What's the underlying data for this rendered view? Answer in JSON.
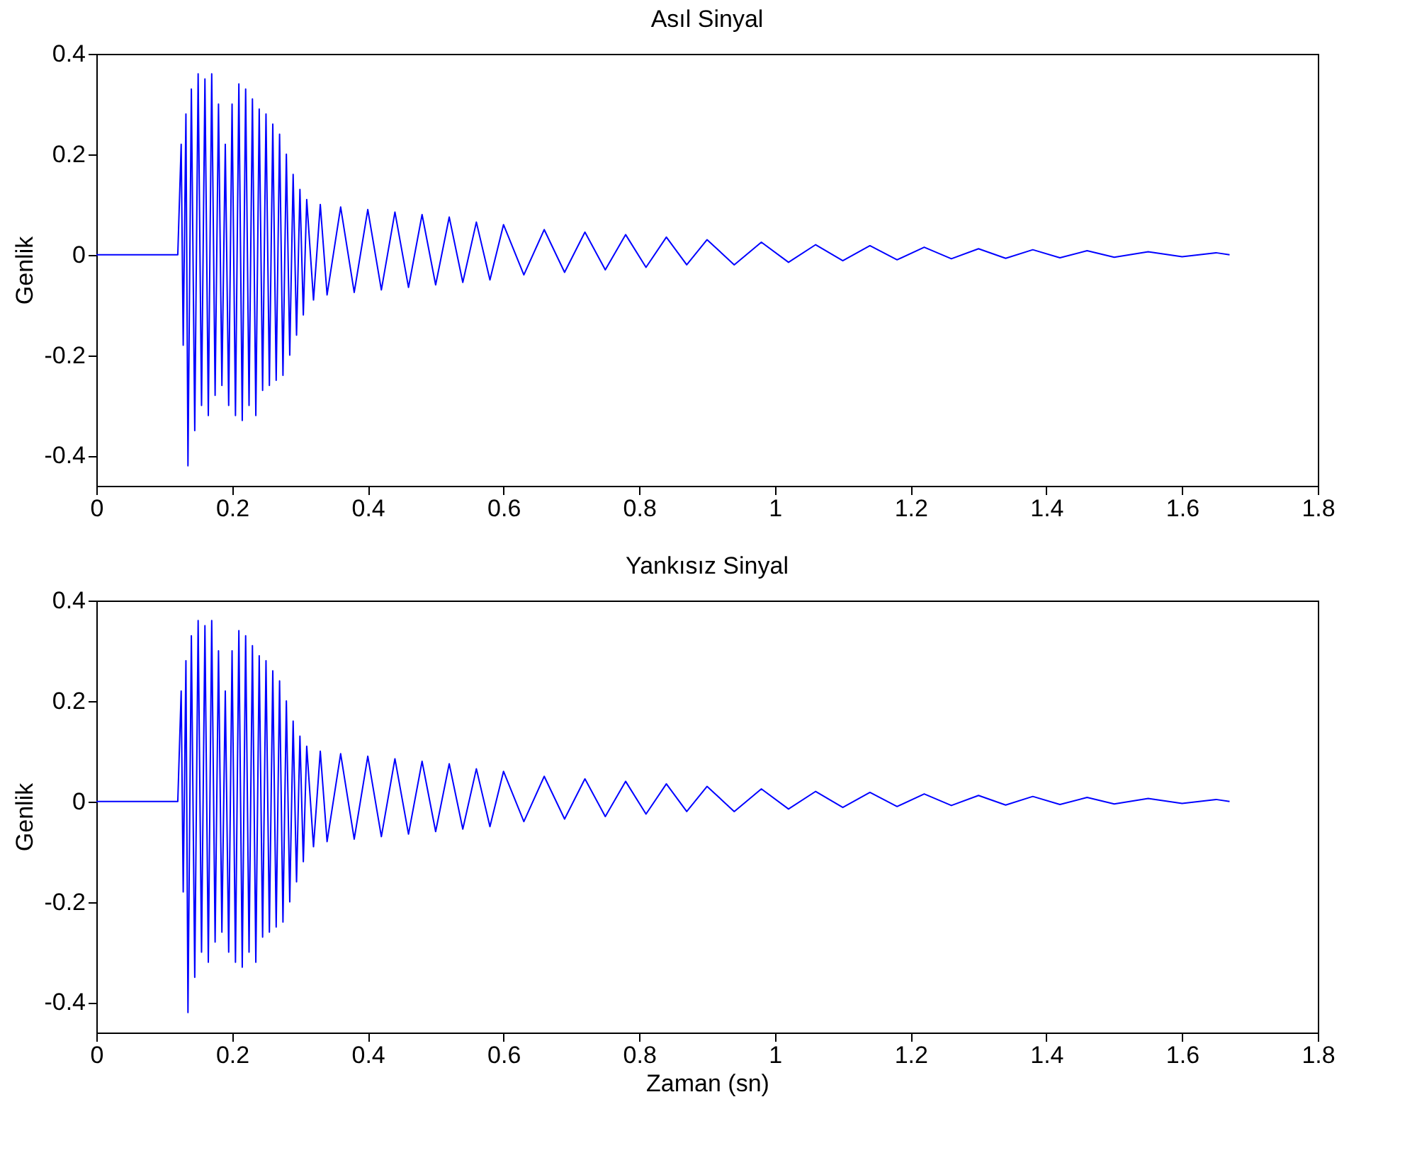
{
  "chart_data": [
    {
      "type": "line",
      "title": "Asıl Sinyal",
      "ylabel": "Genlik",
      "xlim": [
        0,
        1.8
      ],
      "xticks": [
        0,
        0.2,
        0.4,
        0.6,
        0.8,
        1,
        1.2,
        1.4,
        1.6,
        1.8
      ],
      "ylim": [
        -0.46,
        0.4
      ],
      "yticks": [
        -0.4,
        -0.2,
        0,
        0.2,
        0.4
      ],
      "grid": false,
      "line_style": "solid",
      "marker": "none",
      "x": [
        0,
        0.12,
        0.125,
        0.128,
        0.132,
        0.135,
        0.14,
        0.145,
        0.15,
        0.155,
        0.16,
        0.165,
        0.17,
        0.175,
        0.18,
        0.185,
        0.19,
        0.195,
        0.2,
        0.205,
        0.21,
        0.215,
        0.22,
        0.225,
        0.23,
        0.235,
        0.24,
        0.245,
        0.25,
        0.255,
        0.26,
        0.265,
        0.27,
        0.275,
        0.28,
        0.285,
        0.29,
        0.295,
        0.3,
        0.305,
        0.31,
        0.32,
        0.33,
        0.34,
        0.36,
        0.38,
        0.4,
        0.42,
        0.44,
        0.46,
        0.48,
        0.5,
        0.52,
        0.54,
        0.56,
        0.58,
        0.6,
        0.63,
        0.66,
        0.69,
        0.72,
        0.75,
        0.78,
        0.81,
        0.84,
        0.87,
        0.9,
        0.94,
        0.98,
        1.02,
        1.06,
        1.1,
        1.14,
        1.18,
        1.22,
        1.26,
        1.3,
        1.34,
        1.38,
        1.42,
        1.46,
        1.5,
        1.55,
        1.6,
        1.65,
        1.67
      ],
      "series": [
        {
          "color": "#0000ff",
          "values": [
            0,
            0,
            0.22,
            -0.18,
            0.28,
            -0.42,
            0.33,
            -0.35,
            0.36,
            -0.3,
            0.35,
            -0.32,
            0.36,
            -0.28,
            0.3,
            -0.26,
            0.22,
            -0.3,
            0.3,
            -0.32,
            0.34,
            -0.33,
            0.33,
            -0.3,
            0.31,
            -0.32,
            0.29,
            -0.27,
            0.28,
            -0.26,
            0.26,
            -0.25,
            0.24,
            -0.24,
            0.2,
            -0.2,
            0.16,
            -0.16,
            0.13,
            -0.12,
            0.11,
            -0.09,
            0.1,
            -0.08,
            0.095,
            -0.075,
            0.09,
            -0.07,
            0.085,
            -0.065,
            0.08,
            -0.06,
            0.075,
            -0.055,
            0.065,
            -0.05,
            0.06,
            -0.04,
            0.05,
            -0.035,
            0.045,
            -0.03,
            0.04,
            -0.025,
            0.035,
            -0.02,
            0.03,
            -0.02,
            0.025,
            -0.015,
            0.02,
            -0.012,
            0.018,
            -0.01,
            0.015,
            -0.008,
            0.012,
            -0.007,
            0.01,
            -0.006,
            0.008,
            -0.005,
            0.006,
            -0.004,
            0.004,
            0
          ]
        }
      ]
    },
    {
      "type": "line",
      "title": "Yankısız Sinyal",
      "xlabel": "Zaman (sn)",
      "ylabel": "Genlik",
      "xlim": [
        0,
        1.8
      ],
      "xticks": [
        0,
        0.2,
        0.4,
        0.6,
        0.8,
        1,
        1.2,
        1.4,
        1.6,
        1.8
      ],
      "ylim": [
        -0.46,
        0.4
      ],
      "yticks": [
        -0.4,
        -0.2,
        0,
        0.2,
        0.4
      ],
      "grid": false,
      "line_style": "solid",
      "marker": "none",
      "x": [
        0,
        0.12,
        0.125,
        0.128,
        0.132,
        0.135,
        0.14,
        0.145,
        0.15,
        0.155,
        0.16,
        0.165,
        0.17,
        0.175,
        0.18,
        0.185,
        0.19,
        0.195,
        0.2,
        0.205,
        0.21,
        0.215,
        0.22,
        0.225,
        0.23,
        0.235,
        0.24,
        0.245,
        0.25,
        0.255,
        0.26,
        0.265,
        0.27,
        0.275,
        0.28,
        0.285,
        0.29,
        0.295,
        0.3,
        0.305,
        0.31,
        0.32,
        0.33,
        0.34,
        0.36,
        0.38,
        0.4,
        0.42,
        0.44,
        0.46,
        0.48,
        0.5,
        0.52,
        0.54,
        0.56,
        0.58,
        0.6,
        0.63,
        0.66,
        0.69,
        0.72,
        0.75,
        0.78,
        0.81,
        0.84,
        0.87,
        0.9,
        0.94,
        0.98,
        1.02,
        1.06,
        1.1,
        1.14,
        1.18,
        1.22,
        1.26,
        1.3,
        1.34,
        1.38,
        1.42,
        1.46,
        1.5,
        1.55,
        1.6,
        1.65,
        1.67
      ],
      "series": [
        {
          "color": "#0000ff",
          "values": [
            0,
            0,
            0.22,
            -0.18,
            0.28,
            -0.42,
            0.33,
            -0.35,
            0.36,
            -0.3,
            0.35,
            -0.32,
            0.36,
            -0.28,
            0.3,
            -0.26,
            0.22,
            -0.3,
            0.3,
            -0.32,
            0.34,
            -0.33,
            0.33,
            -0.3,
            0.31,
            -0.32,
            0.29,
            -0.27,
            0.28,
            -0.26,
            0.26,
            -0.25,
            0.24,
            -0.24,
            0.2,
            -0.2,
            0.16,
            -0.16,
            0.13,
            -0.12,
            0.11,
            -0.09,
            0.1,
            -0.08,
            0.095,
            -0.075,
            0.09,
            -0.07,
            0.085,
            -0.065,
            0.08,
            -0.06,
            0.075,
            -0.055,
            0.065,
            -0.05,
            0.06,
            -0.04,
            0.05,
            -0.035,
            0.045,
            -0.03,
            0.04,
            -0.025,
            0.035,
            -0.02,
            0.03,
            -0.02,
            0.025,
            -0.015,
            0.02,
            -0.012,
            0.018,
            -0.01,
            0.015,
            -0.008,
            0.012,
            -0.007,
            0.01,
            -0.006,
            0.008,
            -0.005,
            0.006,
            -0.004,
            0.004,
            0
          ]
        }
      ]
    }
  ]
}
